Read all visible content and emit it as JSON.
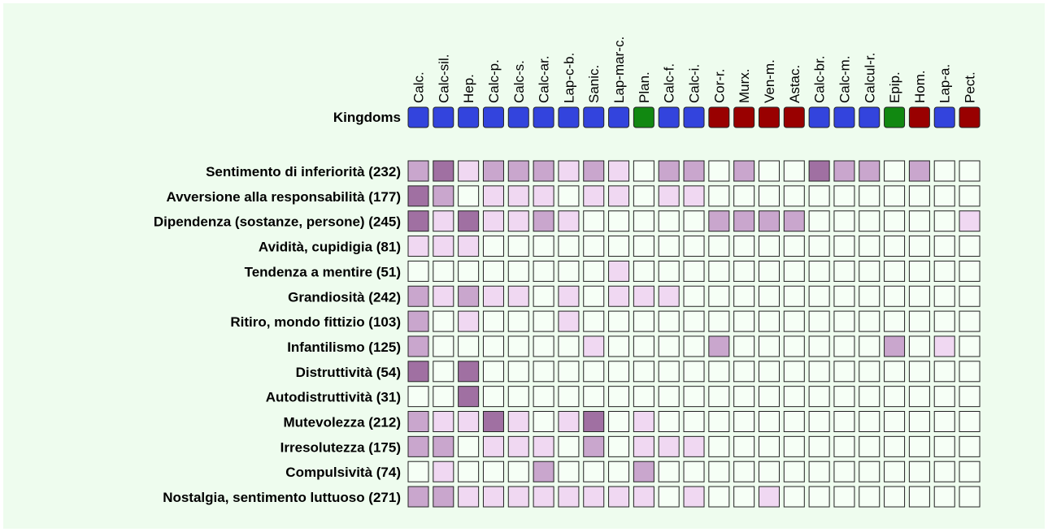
{
  "kingdoms_label": "Kingdoms",
  "columns": [
    "Calc.",
    "Calc-sil.",
    "Hep.",
    "Calc-p.",
    "Calc-s.",
    "Calc-ar.",
    "Lap-c-b.",
    "Sanic.",
    "Lap-mar-c.",
    "Plan.",
    "Calc-f.",
    "Calc-i.",
    "Cor-r.",
    "Murx.",
    "Ven-m.",
    "Astac.",
    "Calc-br.",
    "Calc-m.",
    "Calcul-r.",
    "Epip.",
    "Hom.",
    "Lap-a.",
    "Pect."
  ],
  "kingdom_colors": [
    "#3344dd",
    "#3344dd",
    "#3344dd",
    "#3344dd",
    "#3344dd",
    "#3344dd",
    "#3344dd",
    "#3344dd",
    "#3344dd",
    "#118811",
    "#3344dd",
    "#3344dd",
    "#990000",
    "#990000",
    "#990000",
    "#990000",
    "#3344dd",
    "#3344dd",
    "#3344dd",
    "#118811",
    "#990000",
    "#3344dd",
    "#990000"
  ],
  "level_colors": [
    "#f6fff6",
    "#f0d8f2",
    "#c9a6cd",
    "#a070a2"
  ],
  "rows": [
    {
      "label": "Sentimento di inferiorità (232)",
      "levels": [
        2,
        3,
        1,
        2,
        2,
        2,
        1,
        2,
        1,
        0,
        2,
        2,
        0,
        2,
        0,
        0,
        3,
        2,
        2,
        0,
        2,
        0,
        0
      ]
    },
    {
      "label": "Avversione alla responsabilità (177)",
      "levels": [
        3,
        2,
        0,
        1,
        1,
        1,
        0,
        1,
        1,
        0,
        1,
        1,
        0,
        0,
        0,
        0,
        0,
        0,
        0,
        0,
        0,
        0,
        0
      ]
    },
    {
      "label": "Dipendenza (sostanze, persone) (245)",
      "levels": [
        3,
        1,
        3,
        1,
        1,
        2,
        1,
        0,
        0,
        0,
        0,
        0,
        2,
        2,
        2,
        2,
        0,
        0,
        0,
        0,
        0,
        0,
        1
      ]
    },
    {
      "label": "Avidità, cupidigia (81)",
      "levels": [
        1,
        1,
        1,
        0,
        0,
        0,
        0,
        0,
        0,
        0,
        0,
        0,
        0,
        0,
        0,
        0,
        0,
        0,
        0,
        0,
        0,
        0,
        0
      ]
    },
    {
      "label": "Tendenza a mentire (51)",
      "levels": [
        0,
        0,
        0,
        0,
        0,
        0,
        0,
        0,
        1,
        0,
        0,
        0,
        0,
        0,
        0,
        0,
        0,
        0,
        0,
        0,
        0,
        0,
        0
      ]
    },
    {
      "label": "Grandiosità (242)",
      "levels": [
        2,
        1,
        2,
        1,
        1,
        0,
        1,
        0,
        1,
        1,
        1,
        0,
        0,
        0,
        0,
        0,
        0,
        0,
        0,
        0,
        0,
        0,
        0
      ]
    },
    {
      "label": "Ritiro, mondo fittizio (103)",
      "levels": [
        2,
        0,
        1,
        0,
        0,
        0,
        1,
        0,
        0,
        0,
        0,
        0,
        0,
        0,
        0,
        0,
        0,
        0,
        0,
        0,
        0,
        0,
        0
      ]
    },
    {
      "label": "Infantilismo (125)",
      "levels": [
        2,
        0,
        0,
        0,
        0,
        0,
        0,
        1,
        0,
        0,
        0,
        0,
        2,
        0,
        0,
        0,
        0,
        0,
        0,
        2,
        0,
        1,
        0
      ]
    },
    {
      "label": "Distruttività (54)",
      "levels": [
        3,
        0,
        3,
        0,
        0,
        0,
        0,
        0,
        0,
        0,
        0,
        0,
        0,
        0,
        0,
        0,
        0,
        0,
        0,
        0,
        0,
        0,
        0
      ]
    },
    {
      "label": "Autodistruttività (31)",
      "levels": [
        0,
        0,
        3,
        0,
        0,
        0,
        0,
        0,
        0,
        0,
        0,
        0,
        0,
        0,
        0,
        0,
        0,
        0,
        0,
        0,
        0,
        0,
        0
      ]
    },
    {
      "label": "Mutevolezza (212)",
      "levels": [
        2,
        1,
        1,
        3,
        1,
        0,
        1,
        3,
        0,
        1,
        0,
        0,
        0,
        0,
        0,
        0,
        0,
        0,
        0,
        0,
        0,
        0,
        0
      ]
    },
    {
      "label": "Irresolutezza (175)",
      "levels": [
        2,
        2,
        0,
        1,
        1,
        1,
        0,
        2,
        0,
        1,
        1,
        1,
        0,
        0,
        0,
        0,
        0,
        0,
        0,
        0,
        0,
        0,
        0
      ]
    },
    {
      "label": "Compulsività (74)",
      "levels": [
        0,
        1,
        0,
        0,
        0,
        2,
        0,
        0,
        0,
        2,
        0,
        0,
        0,
        0,
        0,
        0,
        0,
        0,
        0,
        0,
        0,
        0,
        0
      ]
    },
    {
      "label": "Nostalgia, sentimento luttuoso (271)",
      "levels": [
        2,
        2,
        1,
        1,
        1,
        1,
        1,
        1,
        1,
        1,
        0,
        1,
        0,
        0,
        1,
        0,
        0,
        0,
        0,
        0,
        0,
        0,
        0
      ]
    }
  ]
}
